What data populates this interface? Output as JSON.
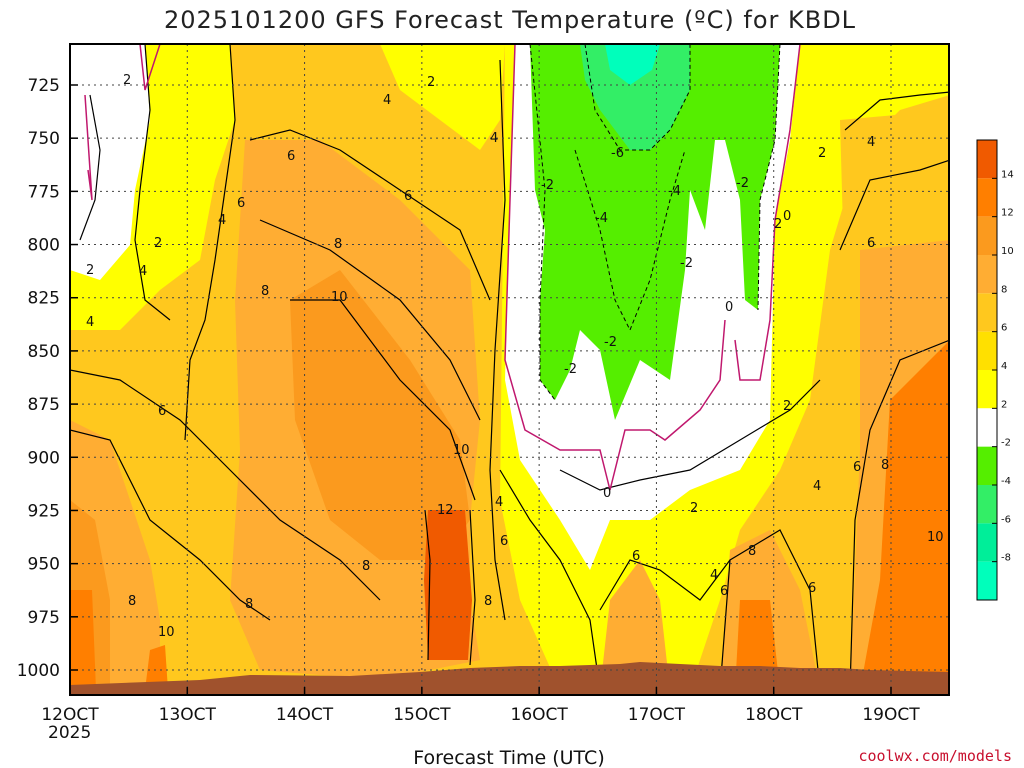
{
  "chart_data": {
    "type": "heatmap",
    "title": "2025101200 GFS Forecast Temperature (ºC) for KBDL",
    "xlabel": "Forecast Time (UTC)",
    "ylabel": "",
    "x_ticks": [
      "12OCT",
      "13OCT",
      "14OCT",
      "15OCT",
      "16OCT",
      "17OCT",
      "18OCT",
      "19OCT"
    ],
    "x_first_year": "2025",
    "y_ticks": [
      725,
      750,
      775,
      800,
      825,
      850,
      875,
      900,
      925,
      950,
      975,
      1000
    ],
    "y_units": "hPa",
    "colorbar_ticks": [
      "14",
      "12",
      "10",
      "8",
      "6",
      "4",
      "2",
      "-2",
      "-4",
      "-6",
      "-8"
    ],
    "colorbar_colors": [
      "#f05a00",
      "#ff7f00",
      "#fb9a1e",
      "#ffad33",
      "#ffc81e",
      "#ffe000",
      "#ffff00",
      "#ffffff",
      "#55ee00",
      "#33ee66",
      "#00ee99",
      "#00ffbb"
    ],
    "contour_labels": [
      {
        "t": "2",
        "v": "2"
      },
      {
        "t": "4",
        "v": "4"
      },
      {
        "t": "6",
        "v": "6"
      },
      {
        "t": "8",
        "v": "8"
      },
      {
        "t": "10",
        "v": "10"
      },
      {
        "t": "12",
        "v": "12"
      },
      {
        "t": "0",
        "v": "0"
      },
      {
        "t": "-2",
        "v": "-2"
      },
      {
        "t": "-4",
        "v": "-4"
      },
      {
        "t": "-6",
        "v": "-6"
      }
    ],
    "credit": "coolwx.com/models"
  }
}
